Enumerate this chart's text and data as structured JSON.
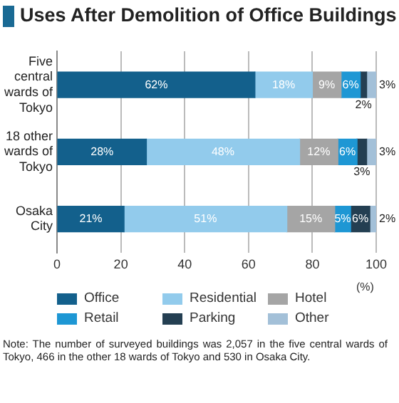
{
  "chart_data": {
    "type": "bar",
    "orientation": "horizontal",
    "stacked": true,
    "title": "Uses After Demolition of Office Buildings",
    "xlabel": "(%)",
    "categories": [
      "Five central wards of Tokyo",
      "18 other wards of Tokyo",
      "Osaka City"
    ],
    "series": [
      {
        "name": "Office",
        "color": "#13608c",
        "values": [
          62,
          28,
          21
        ],
        "value_labels": [
          "62%",
          "28%",
          "21%"
        ]
      },
      {
        "name": "Residential",
        "color": "#92cbec",
        "values": [
          18,
          48,
          51
        ],
        "value_labels": [
          "18%",
          "48%",
          "51%"
        ]
      },
      {
        "name": "Hotel",
        "color": "#a5a5a5",
        "values": [
          9,
          12,
          15
        ],
        "value_labels": [
          "9%",
          "12%",
          "15%"
        ]
      },
      {
        "name": "Retail",
        "color": "#1e97d4",
        "values": [
          6,
          6,
          5
        ],
        "value_labels": [
          "6%",
          "6%",
          "5%"
        ]
      },
      {
        "name": "Parking",
        "color": "#243f52",
        "values": [
          2,
          3,
          6
        ],
        "value_labels": [
          "2%",
          "3%",
          "6%"
        ]
      },
      {
        "name": "Other",
        "color": "#a3c0d8",
        "values": [
          3,
          3,
          2
        ],
        "value_labels": [
          "3%",
          "3%",
          "2%"
        ]
      }
    ],
    "xlim": [
      0,
      100
    ],
    "xticks": [
      0,
      20,
      40,
      60,
      80,
      100
    ],
    "grid": "x",
    "legend": "bottom",
    "annotations": [
      "Note: The number of surveyed buildings was 2,057 in the five central wards of Tokyo, 466 in the other 18 wards of Tokyo and 530 in Osaka City."
    ]
  }
}
